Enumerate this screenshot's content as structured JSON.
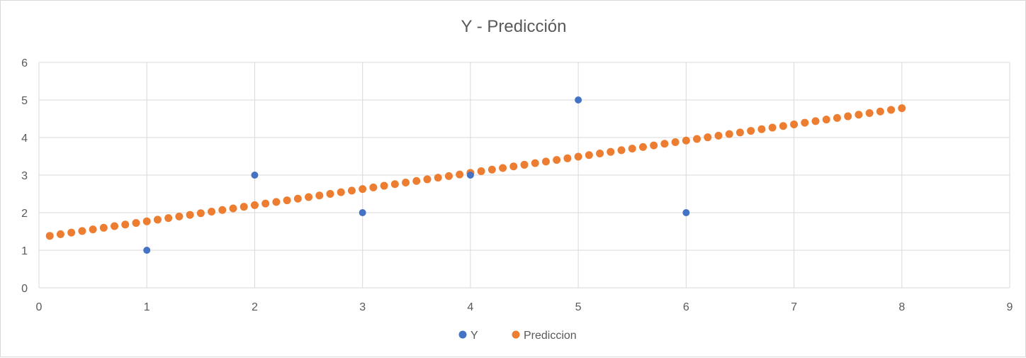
{
  "chart_data": {
    "type": "scatter",
    "title": "Y - Predicción",
    "xlabel": "",
    "ylabel": "",
    "xlim": [
      0,
      9
    ],
    "ylim": [
      0,
      6
    ],
    "x_ticks": [
      "0",
      "1",
      "2",
      "3",
      "4",
      "5",
      "6",
      "7",
      "8",
      "9"
    ],
    "y_ticks": [
      "0",
      "1",
      "2",
      "3",
      "4",
      "5",
      "6"
    ],
    "grid": true,
    "legend_position": "bottom",
    "series": [
      {
        "name": "Y",
        "color": "#4472c4",
        "points": [
          [
            1,
            1
          ],
          [
            2,
            3
          ],
          [
            3,
            2
          ],
          [
            4,
            3
          ],
          [
            5,
            5
          ],
          [
            6,
            2
          ]
        ]
      },
      {
        "name": "Prediccion",
        "color": "#ed7d31",
        "x_start": 0.1,
        "x_end": 8.0,
        "x_step": 0.1,
        "slope": 0.43,
        "intercept": 1.34,
        "points_description": "y = 0.43 x + 1.34 for x from 0.1 to 8.0 step 0.1"
      }
    ]
  }
}
